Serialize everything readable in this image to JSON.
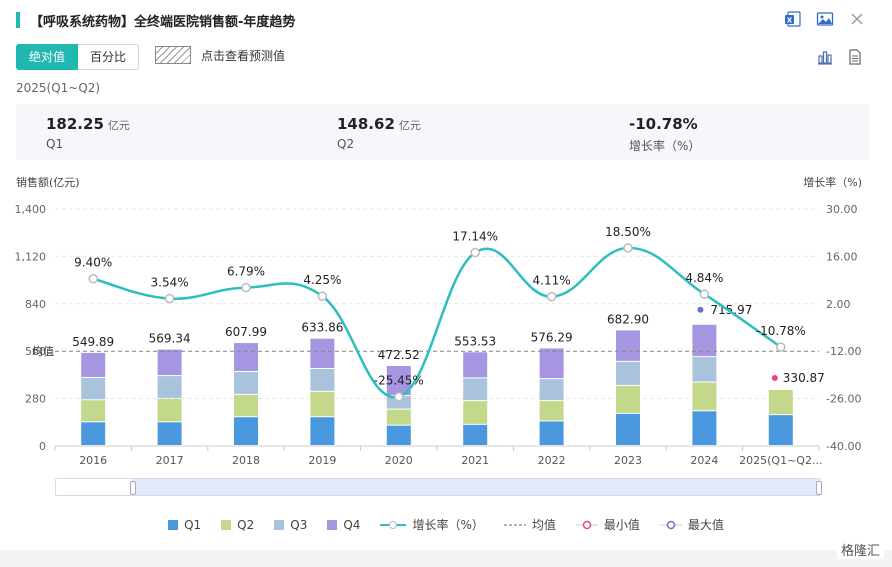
{
  "header": {
    "title": "【呼吸系统药物】全终端医院销售额-年度趋势",
    "icons": [
      "excel-icon",
      "image-icon",
      "close-icon"
    ]
  },
  "toggle": {
    "absolute": "绝对值",
    "percent": "百分比"
  },
  "forecast_label": "点击查看预测值",
  "period": "2025(Q1~Q2)",
  "summary": [
    {
      "value": "182.25",
      "unit": "亿元",
      "label": "Q1"
    },
    {
      "value": "148.62",
      "unit": "亿元",
      "label": "Q2"
    },
    {
      "value": "-10.78%",
      "unit": "",
      "label": "增长率（%）"
    }
  ],
  "axis_titles": {
    "left": "销售额(亿元)",
    "right": "增长率（%)"
  },
  "legend": {
    "q1": "Q1",
    "q2": "Q2",
    "q3": "Q3",
    "q4": "Q4",
    "growth": "增长率（%）",
    "avg": "均值",
    "min": "最小值",
    "max": "最大值"
  },
  "colors": {
    "q1": "#4a98de",
    "q2": "#c4d88c",
    "q3": "#a9c3dd",
    "q4": "#a696e2",
    "growth": "#2bbfbd",
    "accent": "#22b8b2",
    "min": "#e8457a",
    "max": "#6470d8"
  },
  "watermark": "格隆汇",
  "chart_data": {
    "type": "bar",
    "categories": [
      "2016",
      "2017",
      "2018",
      "2019",
      "2020",
      "2021",
      "2022",
      "2023",
      "2024",
      "2025(Q1~Q2..."
    ],
    "series": [
      {
        "name": "Q1",
        "values": [
          140,
          140,
          170,
          170,
          120,
          125,
          145,
          190,
          205,
          182.25
        ]
      },
      {
        "name": "Q2",
        "values": [
          130,
          138,
          132,
          150,
          95,
          140,
          120,
          165,
          170,
          148.62
        ]
      },
      {
        "name": "Q3",
        "values": [
          132,
          135,
          135,
          135,
          80,
          134,
          130,
          142,
          150,
          0
        ]
      },
      {
        "name": "Q4",
        "values": [
          147.89,
          156.34,
          170.99,
          178.86,
          177.52,
          154.53,
          181.29,
          185.9,
          190.97,
          0
        ]
      }
    ],
    "totals": [
      549.89,
      569.34,
      607.99,
      633.86,
      472.52,
      553.53,
      576.29,
      682.9,
      715.97,
      330.87
    ],
    "total_labels": [
      "549.89",
      "569.34",
      "607.99",
      "633.86",
      "472.52",
      "553.53",
      "576.29",
      "682.90",
      "715.97",
      "330.87"
    ],
    "growth": [
      9.4,
      3.54,
      6.79,
      4.25,
      -25.45,
      17.14,
      4.11,
      18.5,
      4.84,
      -10.78
    ],
    "growth_labels": [
      "9.40%",
      "3.54%",
      "6.79%",
      "4.25%",
      "-25.45%",
      "17.14%",
      "4.11%",
      "18.50%",
      "4.84%",
      "-10.78%"
    ],
    "y_left": {
      "min": 0,
      "max": 1400,
      "ticks": [
        "0",
        "280",
        "560",
        "840",
        "1,120",
        "1,400"
      ]
    },
    "y_right": {
      "min": -40,
      "max": 30,
      "ticks": [
        "-40.00",
        "-26.00",
        "-12.00",
        "2.00",
        "16.00",
        "30.00"
      ]
    },
    "average": 560,
    "average_label": "均值",
    "max_index": 8,
    "min_index": 9,
    "legend_position": "bottom"
  }
}
